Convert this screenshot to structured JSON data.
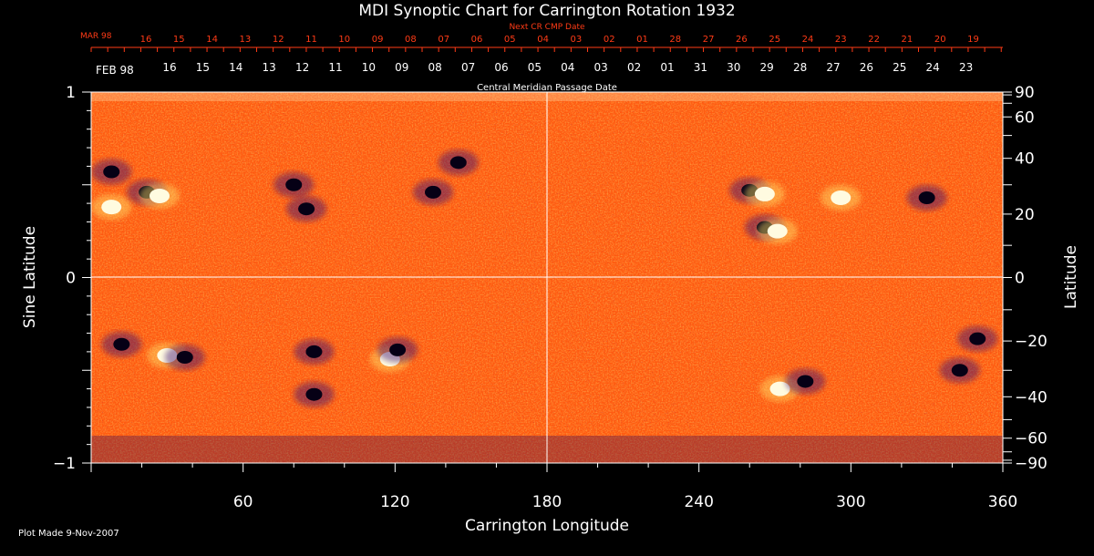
{
  "chart_data": {
    "type": "heatmap",
    "title": "MDI Synoptic Chart for Carrington Rotation 1932",
    "xlabel": "Carrington Longitude",
    "ylabel_left": "Sine Latitude",
    "ylabel_right": "Latitude",
    "xlim": [
      0,
      360
    ],
    "ylim": [
      -1,
      1
    ],
    "x_ticks": [
      60,
      120,
      180,
      240,
      300,
      360
    ],
    "y_ticks_left": [
      -1,
      0,
      1
    ],
    "y_ticks_left_labels": [
      "−1",
      "0",
      "1"
    ],
    "y_ticks_right": [
      90,
      60,
      40,
      20,
      0,
      -20,
      -40,
      -60,
      -90
    ],
    "y_ticks_right_labels": [
      "90",
      "60",
      "40",
      "20",
      "0",
      "−20",
      "−40",
      "−60",
      "−90"
    ],
    "grid": "center crosshair at 180 deg and equator",
    "colors": {
      "background_field": "#ff5a10",
      "positive_polarity": "#fffbe0",
      "negative_polarity": "#060015",
      "accent_orange": "#ff3b16",
      "grid": "#ffffff"
    },
    "cmp_top": {
      "label": "Next CR CMP Date",
      "month_label": "MAR 98",
      "days": [
        "16",
        "15",
        "14",
        "13",
        "12",
        "11",
        "10",
        "09",
        "08",
        "07",
        "06",
        "05",
        "04",
        "03",
        "02",
        "01",
        "28",
        "27",
        "26",
        "25",
        "24",
        "23",
        "22",
        "21",
        "20",
        "19"
      ]
    },
    "cmp_bottom": {
      "label": "Central Meridian Passage Date",
      "month_label": "FEB 98",
      "days": [
        "16",
        "15",
        "14",
        "13",
        "12",
        "11",
        "10",
        "09",
        "08",
        "07",
        "06",
        "05",
        "04",
        "03",
        "02",
        "01",
        "31",
        "30",
        "29",
        "28",
        "27",
        "26",
        "25",
        "24",
        "23"
      ]
    },
    "regions": [
      {
        "lon": 8,
        "lat": 0.57,
        "polarity": "negative"
      },
      {
        "lon": 8,
        "lat": 0.38,
        "polarity": "positive"
      },
      {
        "lon": 22,
        "lat": 0.46,
        "polarity": "negative"
      },
      {
        "lon": 27,
        "lat": 0.44,
        "polarity": "positive"
      },
      {
        "lon": 12,
        "lat": -0.36,
        "polarity": "negative"
      },
      {
        "lon": 30,
        "lat": -0.42,
        "polarity": "positive"
      },
      {
        "lon": 37,
        "lat": -0.43,
        "polarity": "negative"
      },
      {
        "lon": 88,
        "lat": -0.63,
        "polarity": "negative"
      },
      {
        "lon": 88,
        "lat": -0.4,
        "polarity": "negative"
      },
      {
        "lon": 80,
        "lat": 0.5,
        "polarity": "negative"
      },
      {
        "lon": 85,
        "lat": 0.37,
        "polarity": "negative"
      },
      {
        "lon": 118,
        "lat": -0.44,
        "polarity": "positive"
      },
      {
        "lon": 121,
        "lat": -0.39,
        "polarity": "negative"
      },
      {
        "lon": 135,
        "lat": 0.46,
        "polarity": "negative"
      },
      {
        "lon": 145,
        "lat": 0.62,
        "polarity": "negative"
      },
      {
        "lon": 260,
        "lat": 0.47,
        "polarity": "negative"
      },
      {
        "lon": 266,
        "lat": 0.45,
        "polarity": "positive"
      },
      {
        "lon": 266,
        "lat": 0.27,
        "polarity": "negative"
      },
      {
        "lon": 271,
        "lat": 0.25,
        "polarity": "positive"
      },
      {
        "lon": 272,
        "lat": -0.6,
        "polarity": "positive"
      },
      {
        "lon": 282,
        "lat": -0.56,
        "polarity": "negative"
      },
      {
        "lon": 296,
        "lat": 0.43,
        "polarity": "positive"
      },
      {
        "lon": 330,
        "lat": 0.43,
        "polarity": "negative"
      },
      {
        "lon": 343,
        "lat": -0.5,
        "polarity": "negative"
      },
      {
        "lon": 350,
        "lat": -0.33,
        "polarity": "negative"
      }
    ]
  },
  "footer": {
    "plot_made": "Plot Made  9-Nov-2007"
  }
}
